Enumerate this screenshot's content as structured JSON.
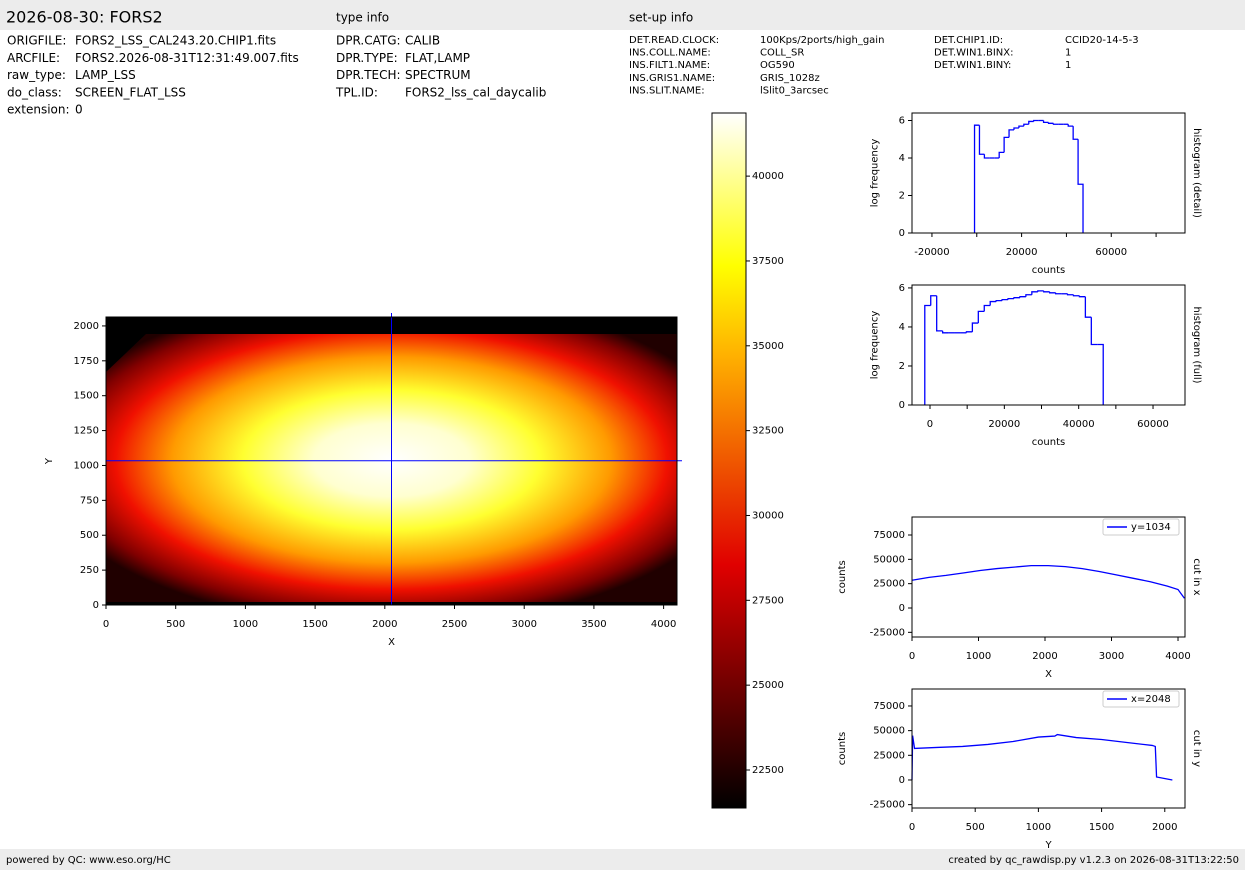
{
  "header": {
    "title": "2026-08-30: FORS2",
    "type_info": "type info",
    "setup_info": "set-up info"
  },
  "file_info": [
    {
      "label": "ORIGFILE:",
      "value": "FORS2_LSS_CAL243.20.CHIP1.fits"
    },
    {
      "label": "ARCFILE:",
      "value": "FORS2.2026-08-31T12:31:49.007.fits"
    },
    {
      "label": "raw_type:",
      "value": "LAMP_LSS"
    },
    {
      "label": "do_class:",
      "value": "SCREEN_FLAT_LSS"
    },
    {
      "label": "extension:",
      "value": 0
    }
  ],
  "type_info": [
    {
      "label": "DPR.CATG:",
      "value": "CALIB"
    },
    {
      "label": "DPR.TYPE:",
      "value": "FLAT,LAMP"
    },
    {
      "label": "DPR.TECH:",
      "value": "SPECTRUM"
    },
    {
      "label": "TPL.ID:",
      "value": "FORS2_lss_cal_daycalib"
    }
  ],
  "setup_info": [
    {
      "label": "DET.READ.CLOCK:",
      "value": "100Kps/2ports/high_gain"
    },
    {
      "label": "INS.COLL.NAME:",
      "value": "COLL_SR"
    },
    {
      "label": "INS.FILT1.NAME:",
      "value": "OG590"
    },
    {
      "label": "INS.GRIS1.NAME:",
      "value": "GRIS_1028z"
    },
    {
      "label": "INS.SLIT.NAME:",
      "value": "lSlit0_3arcsec"
    }
  ],
  "setup_info_2": [
    {
      "label": "DET.CHIP1.ID:",
      "value": "CCID20-14-5-3"
    },
    {
      "label": "DET.WIN1.BINX:",
      "value": 1
    },
    {
      "label": "DET.WIN1.BINY:",
      "value": 1
    }
  ],
  "footer": {
    "left": "powered by QC: www.eso.org/HC",
    "right": "created by qc_rawdisp.py v1.2.3 on 2026-08-31T13:22:50"
  },
  "chart_data": [
    {
      "type": "image",
      "xlabel": "X",
      "ylabel": "Y",
      "xlim": [
        0,
        4096
      ],
      "ylim": [
        0,
        2064
      ],
      "xticks": [
        0,
        500,
        1000,
        1500,
        2000,
        2500,
        3000,
        3500,
        4000
      ],
      "yticks": [
        0,
        250,
        500,
        750,
        1000,
        1250,
        1500,
        1750,
        2000
      ],
      "crosshair": {
        "x": 2048,
        "y": 1034
      },
      "crosshair_color": "#0000ff"
    },
    {
      "type": "colorbar",
      "ylim": [
        21380,
        41860
      ],
      "yticks": [
        22500,
        25000,
        27500,
        30000,
        32500,
        35000,
        37500,
        40000
      ]
    },
    {
      "type": "histogram",
      "xlabel": "counts",
      "ylabel": "log frequency",
      "side_label": "histogram (detail)",
      "color": "#0000ff",
      "xlim": [
        -28900,
        92900
      ],
      "ylim": [
        0,
        6.4
      ],
      "xticks": [
        -20000,
        20000,
        60000
      ],
      "xminorticks": [
        0,
        40000,
        80000
      ],
      "yticks": [
        0,
        2,
        4,
        6
      ],
      "bins": [
        -1000,
        1200,
        3400,
        5600,
        7800,
        10000,
        12200,
        14400,
        16600,
        18800,
        21000,
        23200,
        25400,
        27600,
        29800,
        32000,
        34200,
        36400,
        38600,
        40800,
        43000,
        45200,
        47400
      ],
      "values": [
        5.75,
        4.2,
        4.0,
        4.0,
        4.0,
        4.3,
        5.1,
        5.5,
        5.6,
        5.7,
        5.8,
        5.95,
        6.0,
        6.0,
        5.9,
        5.85,
        5.8,
        5.8,
        5.8,
        5.7,
        5.0,
        2.6
      ]
    },
    {
      "type": "histogram",
      "xlabel": "counts",
      "ylabel": "log frequency",
      "side_label": "histogram (full)",
      "color": "#0000ff",
      "xlim": [
        -4840,
        68600
      ],
      "ylim": [
        0,
        6.15
      ],
      "xticks": [
        0,
        20000,
        40000,
        60000
      ],
      "xminorticks": [
        10000,
        30000,
        50000
      ],
      "yticks": [
        0,
        2,
        4,
        6
      ],
      "bins": [
        -1400,
        200,
        1800,
        3400,
        5000,
        6600,
        8200,
        9800,
        11400,
        13000,
        14600,
        16200,
        17800,
        19400,
        21000,
        22600,
        24200,
        25800,
        27400,
        29000,
        30600,
        32200,
        33800,
        35400,
        37000,
        38600,
        40200,
        41800,
        43400,
        45000,
        46600
      ],
      "values": [
        5.1,
        5.6,
        3.8,
        3.7,
        3.7,
        3.7,
        3.7,
        3.75,
        4.2,
        4.8,
        5.1,
        5.3,
        5.35,
        5.4,
        5.45,
        5.5,
        5.55,
        5.65,
        5.8,
        5.85,
        5.8,
        5.75,
        5.7,
        5.7,
        5.65,
        5.6,
        5.55,
        4.5,
        3.1,
        3.1
      ]
    },
    {
      "type": "line",
      "xlabel": "X",
      "ylabel": "counts",
      "side_label": "cut in x",
      "xlim": [
        0,
        4105
      ],
      "ylim": [
        -29800,
        93500
      ],
      "xticks": [
        0,
        1000,
        2000,
        3000,
        4000
      ],
      "yticks": [
        -25000,
        0,
        25000,
        50000,
        75000
      ],
      "x": [
        0,
        256,
        512,
        768,
        1024,
        1280,
        1536,
        1792,
        2048,
        2304,
        2560,
        2816,
        3072,
        3328,
        3584,
        3840,
        4000,
        4096
      ],
      "series": [
        {
          "name": "y=1034",
          "color": "#0000ff",
          "values": [
            28500,
            31500,
            33500,
            36000,
            38500,
            40500,
            42000,
            43500,
            43500,
            42500,
            40500,
            37500,
            34000,
            30500,
            27000,
            22500,
            19000,
            10000
          ]
        }
      ]
    },
    {
      "type": "line",
      "xlabel": "Y",
      "ylabel": "counts",
      "side_label": "cut in y",
      "xlim": [
        0,
        2160
      ],
      "ylim": [
        -28400,
        92200
      ],
      "xticks": [
        0,
        500,
        1000,
        1500,
        2000
      ],
      "yticks": [
        -25000,
        0,
        25000,
        50000,
        75000
      ],
      "x": [
        0,
        5,
        20,
        200,
        400,
        600,
        800,
        1000,
        1130,
        1150,
        1300,
        1500,
        1700,
        1900,
        1925,
        1935,
        2060
      ],
      "series": [
        {
          "name": "x=2048",
          "color": "#0000ff",
          "values": [
            0,
            45000,
            32000,
            33000,
            34000,
            36000,
            39000,
            43500,
            44500,
            46000,
            43000,
            41000,
            38000,
            35000,
            34000,
            3000,
            0
          ]
        }
      ]
    }
  ]
}
